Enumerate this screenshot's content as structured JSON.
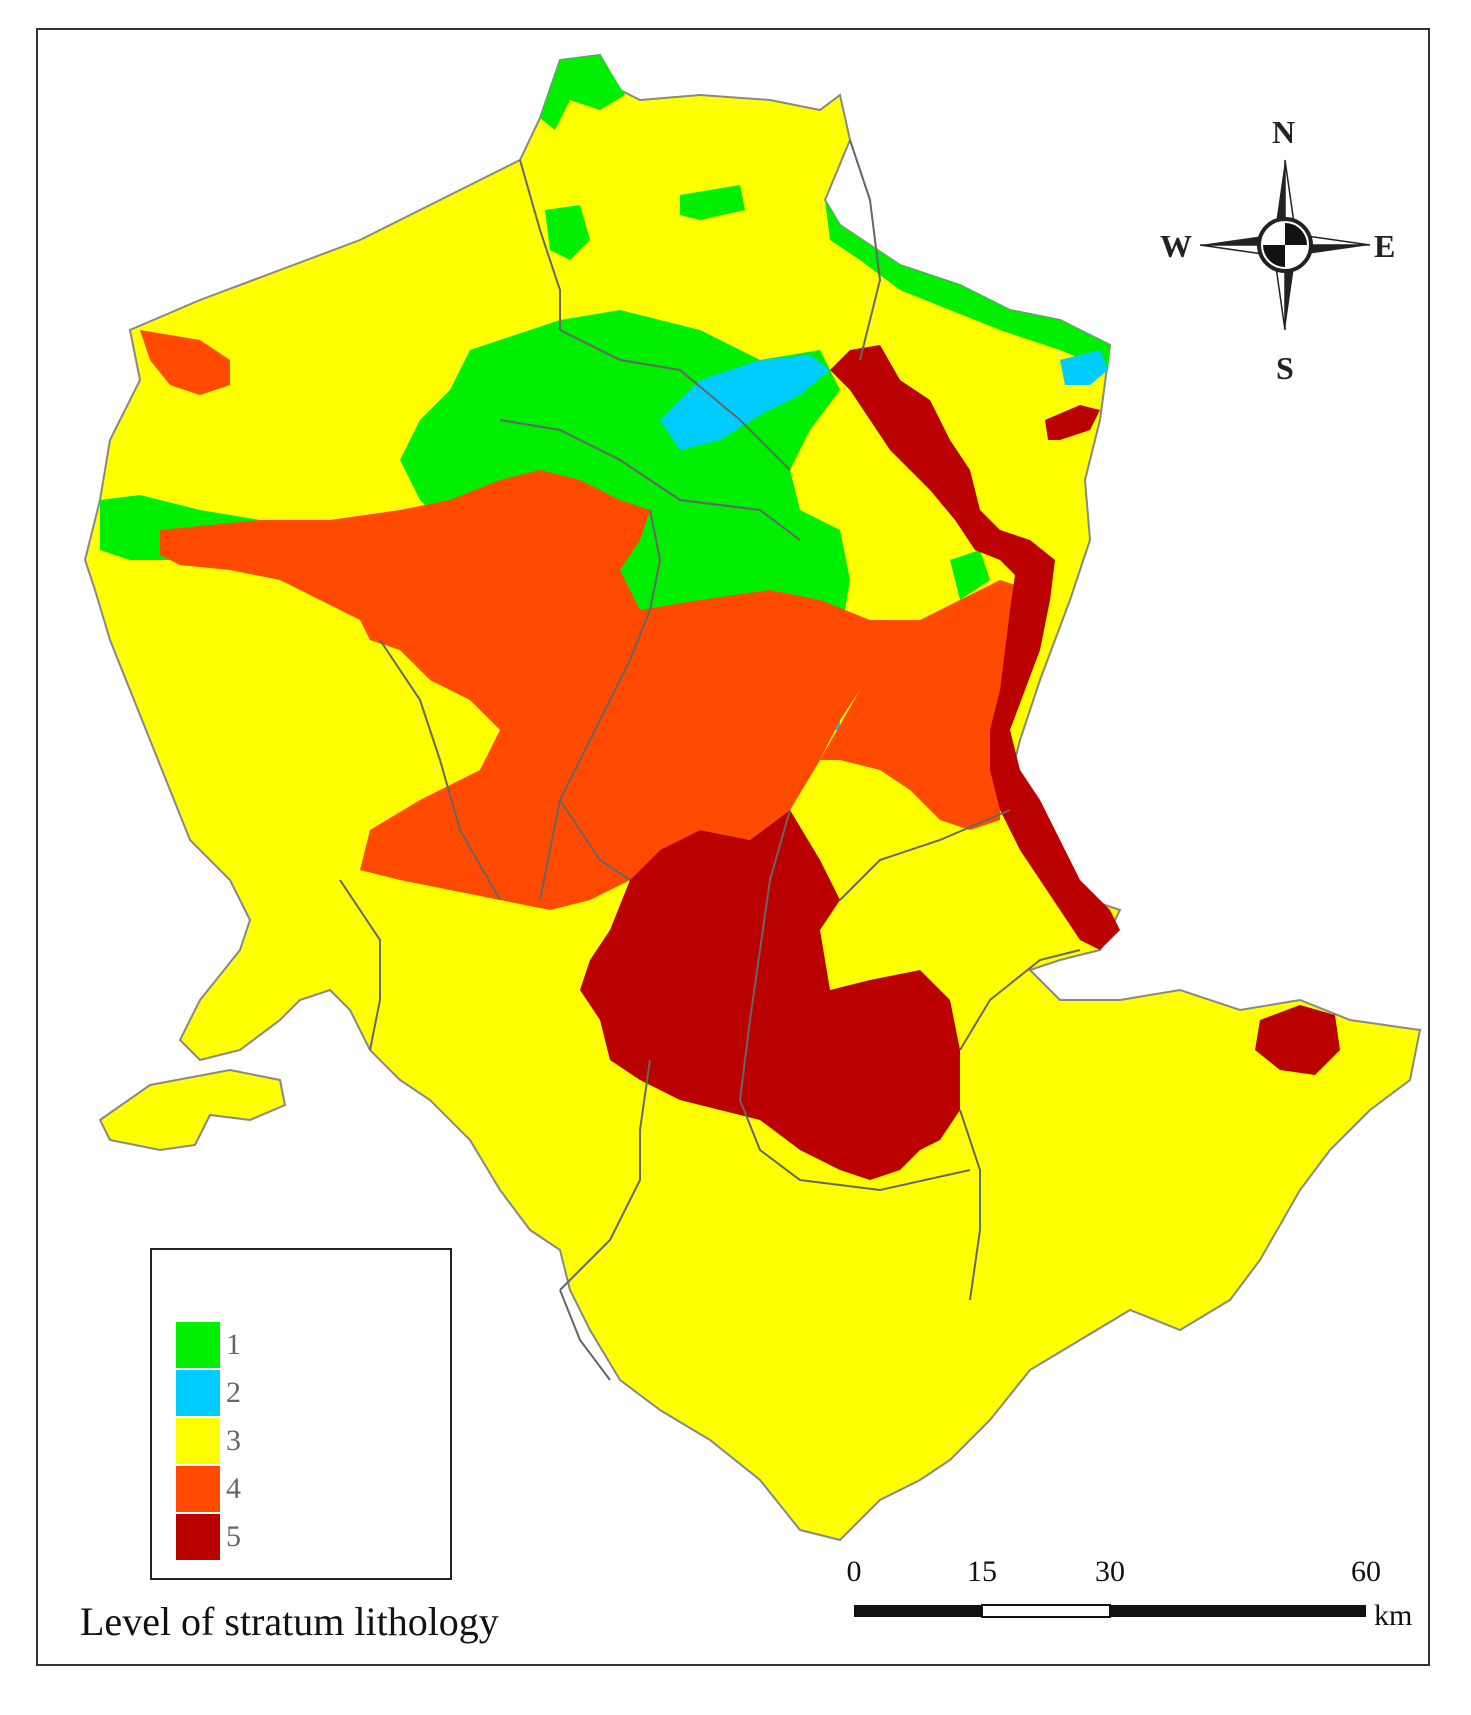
{
  "colors": {
    "level_1": "#00ee00",
    "level_2": "#00ccff",
    "level_3": "#ffff00",
    "level_4": "#ff4a00",
    "level_5": "#bb0000",
    "border": "#666666"
  },
  "legend": {
    "title": "Level of stratum lithology",
    "items": [
      {
        "label": "1",
        "color": "#00ee00"
      },
      {
        "label": "2",
        "color": "#00ccff"
      },
      {
        "label": "3",
        "color": "#ffff00"
      },
      {
        "label": "4",
        "color": "#ff4a00"
      },
      {
        "label": "5",
        "color": "#bb0000"
      }
    ]
  },
  "compass": {
    "n": "N",
    "s": "S",
    "e": "E",
    "w": "W",
    "icon": "north-arrow-icon"
  },
  "scale_bar": {
    "ticks": [
      "0",
      "15",
      "30",
      "60"
    ],
    "unit": "km"
  }
}
